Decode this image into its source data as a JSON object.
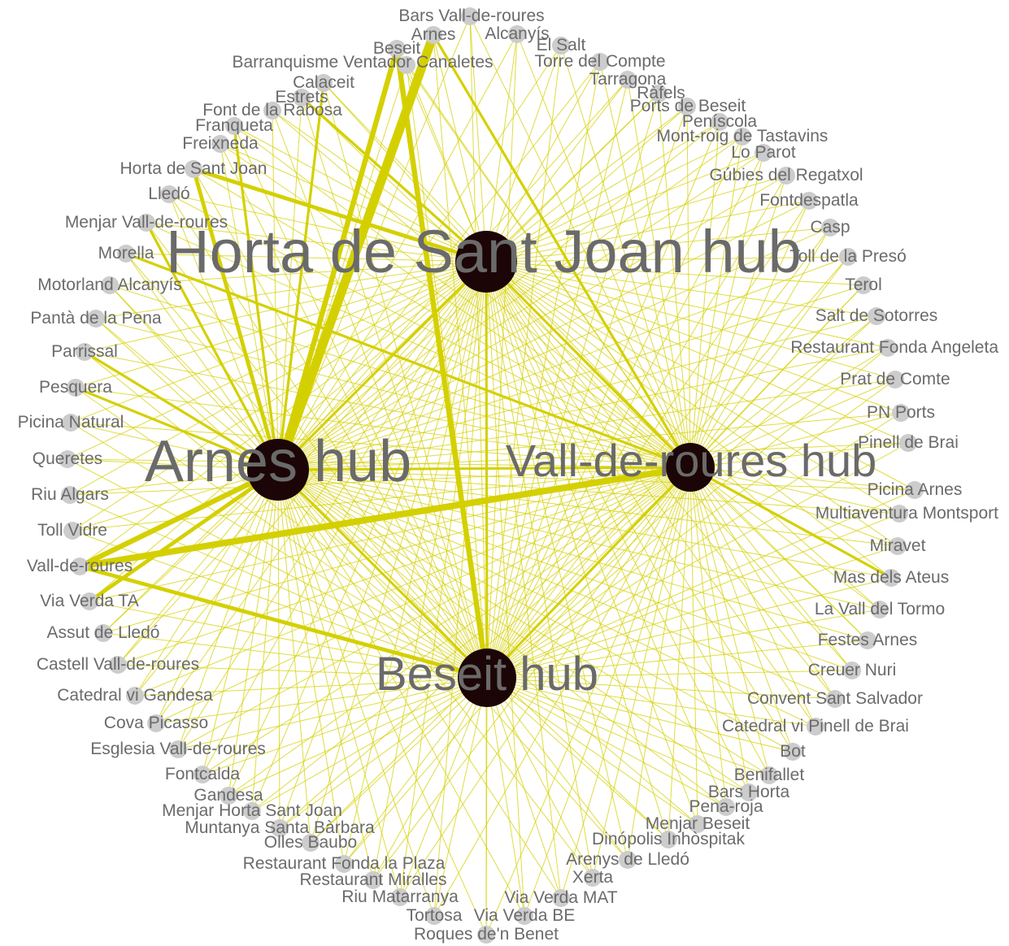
{
  "colors": {
    "background": "#ffffff",
    "edge": "#d4d000",
    "node": "#cccccc",
    "hub": "#1c0507",
    "label": "#6b6b6b",
    "hub_label": "#6a6a6a"
  },
  "hubs": [
    {
      "id": "horta",
      "label": "Horta de Sant Joan hub"
    },
    {
      "id": "arnes",
      "label": "Arnes hub"
    },
    {
      "id": "vall",
      "label": "Vall-de-roures hub"
    },
    {
      "id": "beseit",
      "label": "Beseit hub"
    }
  ],
  "nodes": [
    "Bars Vall-de-roures",
    "Arnes",
    "Alcanyís",
    "El Salt",
    "Beseit",
    "Barranquisme Ventador Canaletes",
    "Torre del Compte",
    "Tarragona",
    "Calaceit",
    "Ràfels",
    "Estrets",
    "Ports de Beseit",
    "Font de la Rabosa",
    "Peníscola",
    "Franqueta",
    "Mont-roig de Tastavins",
    "Freixneda",
    "Lo Parot",
    "Horta de Sant Joan",
    "Gúbies del Regatxol",
    "Lledó",
    "Fontdespatla",
    "Menjar Vall-de-roures",
    "Casp",
    "Morella",
    "Toll de la Presó",
    "Motorland Alcanyís",
    "Terol",
    "Pantà de la Pena",
    "Salt de Sotorres",
    "Parrissal",
    "Restaurant Fonda Angeleta",
    "Pesquera",
    "Prat de Comte",
    "Picina Natural",
    "PN Ports",
    "Pinell de Brai",
    "Queretes",
    "Picina Arnes",
    "Riu Algars",
    "Multiaventura Montsport",
    "Toll Vidre",
    "Miravet",
    "Vall-de-roures",
    "Mas dels Ateus",
    "Via Verda TA",
    "La Vall del Tormo",
    "Assut de Lledó",
    "Festes Arnes",
    "Castell Vall-de-roures",
    "Creuer Nuri",
    "Catedral vi Gandesa",
    "Convent Sant Salvador",
    "Cova Picasso",
    "Catedral vi Pinell de Brai",
    "Esglesia Vall-de-roures",
    "Bot",
    "Fontcalda",
    "Benifallet",
    "Gandesa",
    "Bars Horta",
    "Pena-roja",
    "Menjar Horta Sant Joan",
    "Menjar Beseit",
    "Muntanya Santa Bàrbara",
    "Dinópolis Inhòspitak",
    "Olles Baubo",
    "Arenys de Lledó",
    "Restaurant Fonda la Plaza",
    "Xerta",
    "Restaurant Miralles",
    "Riu Matarranya",
    "Via Verda MAT",
    "Tortosa",
    "Via Verda BE",
    "Roques de'n Benet"
  ],
  "strong_edges": [
    {
      "from": "horta",
      "to": "Horta de Sant Joan",
      "weight": 3
    },
    {
      "from": "arnes",
      "to": "Arnes",
      "weight": 7
    },
    {
      "from": "arnes",
      "to": "Beseit",
      "weight": 4
    },
    {
      "from": "arnes",
      "to": "Vall-de-roures",
      "weight": 4
    },
    {
      "from": "arnes",
      "to": "Horta de Sant Joan",
      "weight": 3
    },
    {
      "from": "arnes",
      "to": "Menjar Vall-de-roures",
      "weight": 2
    },
    {
      "from": "arnes",
      "to": "Via Verda TA",
      "weight": 3
    },
    {
      "from": "vall",
      "to": "Vall-de-roures",
      "weight": 5
    },
    {
      "from": "vall",
      "to": "Morella",
      "weight": 2
    },
    {
      "from": "vall",
      "to": "Mas dels Ateus",
      "weight": 2
    },
    {
      "from": "vall",
      "to": "Arnes",
      "weight": 2
    },
    {
      "from": "beseit",
      "to": "Beseit",
      "weight": 4
    },
    {
      "from": "beseit",
      "to": "Vall-de-roures",
      "weight": 3
    },
    {
      "from": "horta",
      "to": "Estrets",
      "weight": 2
    },
    {
      "from": "arnes",
      "to": "Calaceit",
      "weight": 2
    },
    {
      "from": "arnes",
      "to": "Franqueta",
      "weight": 2
    },
    {
      "from": "arnes",
      "to": "Pesquera",
      "weight": 2
    },
    {
      "from": "arnes",
      "to": "Parrissal",
      "weight": 2
    }
  ]
}
